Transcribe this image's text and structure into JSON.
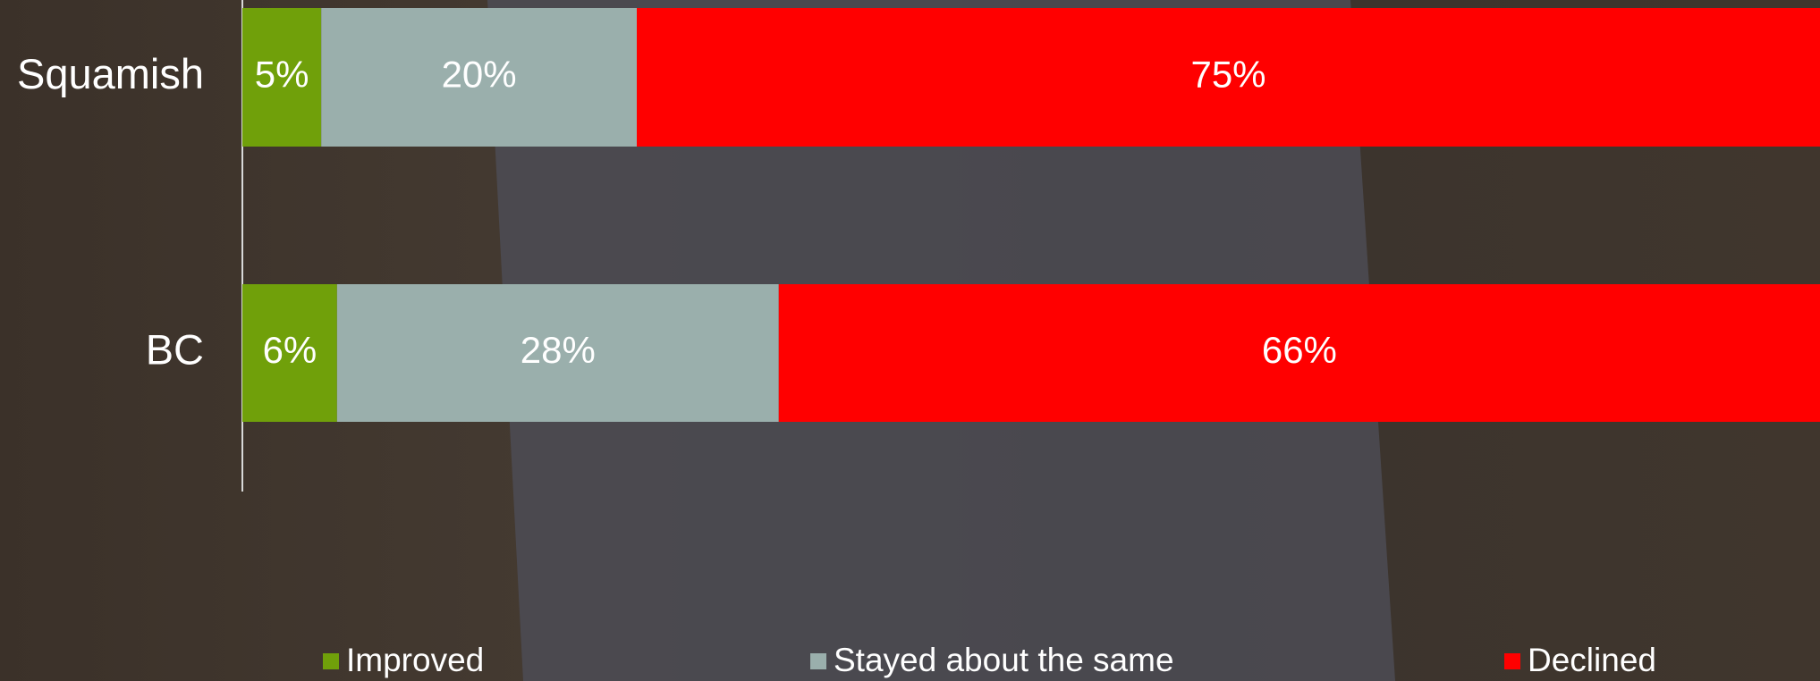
{
  "chart_data": {
    "type": "stacked-bar-horizontal",
    "categories": [
      "Squamish",
      "BC"
    ],
    "series": [
      {
        "name": "Improved",
        "color": "#70a00a",
        "values": [
          5,
          6
        ],
        "value_labels": [
          "5%",
          "6%"
        ]
      },
      {
        "name": "Stayed about the same",
        "color": "#9aafac",
        "values": [
          20,
          28
        ],
        "value_labels": [
          "20%",
          "28%"
        ]
      },
      {
        "name": "Declined",
        "color": "#ff0000",
        "values": [
          75,
          66
        ],
        "value_labels": [
          "75%",
          "66%"
        ]
      }
    ],
    "xlim": [
      0,
      100
    ],
    "legend": "bottom"
  }
}
